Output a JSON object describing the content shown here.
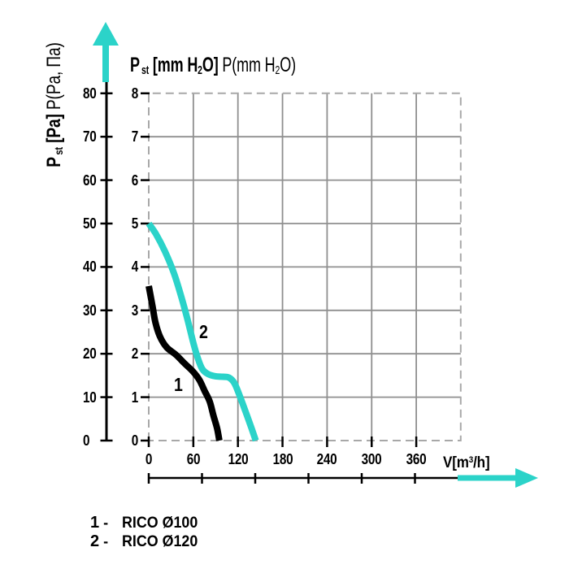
{
  "colors": {
    "accent": "#2bd3c9",
    "black": "#000000",
    "grid_solid": "#8f8f8f",
    "grid_dashed": "#a8a8a8",
    "background": "#ffffff"
  },
  "titles": {
    "inner_parts": [
      {
        "t": "P",
        "b": 1
      },
      {
        "t": "st",
        "b": 1,
        "v": "sub",
        "gap": 1
      },
      {
        "t": " [mm H",
        "b": 1
      },
      {
        "t": "2",
        "b": 1,
        "v": "sub"
      },
      {
        "t": "O]",
        "b": 1
      },
      {
        "t": " P(mm H"
      },
      {
        "t": "2",
        "v": "sub"
      },
      {
        "t": "O)"
      }
    ],
    "left_parts": [
      {
        "t": "P",
        "b": 1
      },
      {
        "t": "st",
        "b": 1,
        "v": "sub",
        "gap": 1
      },
      {
        "t": " [Pa]",
        "b": 1
      },
      {
        "t": " P(Pa, Па)"
      }
    ],
    "x_parts": [
      {
        "t": "V[m",
        "b": 1
      },
      {
        "t": "3",
        "b": 1,
        "v": "sup"
      },
      {
        "t": "/h]",
        "b": 1
      }
    ]
  },
  "legend": {
    "items": [
      {
        "num": "1",
        "dash": "-",
        "label": "RICO Ø100"
      },
      {
        "num": "2",
        "dash": "-",
        "label": "RICO Ø120"
      }
    ]
  },
  "chart_data": {
    "type": "line",
    "title": "Pst [mm H2O] P(mm H2O)",
    "ylabel": "Pst [Pa] P(Pa, Па)",
    "xlabel": "V[m3/h]",
    "x_ticks": [
      0,
      60,
      120,
      180,
      240,
      300,
      360
    ],
    "y_ticks_mm_h2o": [
      0,
      1,
      2,
      3,
      4,
      5,
      6,
      7,
      8
    ],
    "y_ticks_pa": [
      0,
      10,
      20,
      30,
      40,
      50,
      60,
      70,
      80
    ],
    "xlim": [
      0,
      420
    ],
    "ylim": [
      0,
      8
    ],
    "grid": "solid inner lines, dashed outer border",
    "legend_position": "bottom-left",
    "series": [
      {
        "name": "1",
        "label": "RICO Ø100",
        "color": "#000000",
        "points": [
          [
            0,
            3.56
          ],
          [
            5,
            3.1
          ],
          [
            9,
            2.72
          ],
          [
            15,
            2.4
          ],
          [
            24,
            2.15
          ],
          [
            37,
            1.97
          ],
          [
            48,
            1.78
          ],
          [
            59,
            1.6
          ],
          [
            68,
            1.4
          ],
          [
            75,
            1.15
          ],
          [
            82,
            0.9
          ],
          [
            87,
            0.58
          ],
          [
            92,
            0.28
          ],
          [
            95,
            0
          ]
        ]
      },
      {
        "name": "2",
        "label": "RICO Ø120",
        "color": "#2bd3c9",
        "points": [
          [
            0,
            5.0
          ],
          [
            10,
            4.75
          ],
          [
            22,
            4.35
          ],
          [
            34,
            3.85
          ],
          [
            44,
            3.3
          ],
          [
            52,
            2.8
          ],
          [
            60,
            2.25
          ],
          [
            66,
            1.9
          ],
          [
            72,
            1.65
          ],
          [
            80,
            1.53
          ],
          [
            90,
            1.48
          ],
          [
            100,
            1.47
          ],
          [
            108,
            1.45
          ],
          [
            115,
            1.33
          ],
          [
            122,
            1.05
          ],
          [
            130,
            0.68
          ],
          [
            138,
            0.3
          ],
          [
            144,
            0
          ]
        ]
      }
    ],
    "curve_labels": [
      {
        "text": "1",
        "x": 41,
        "y": 1.27
      },
      {
        "text": "2",
        "x": 74,
        "y": 2.5
      }
    ]
  }
}
